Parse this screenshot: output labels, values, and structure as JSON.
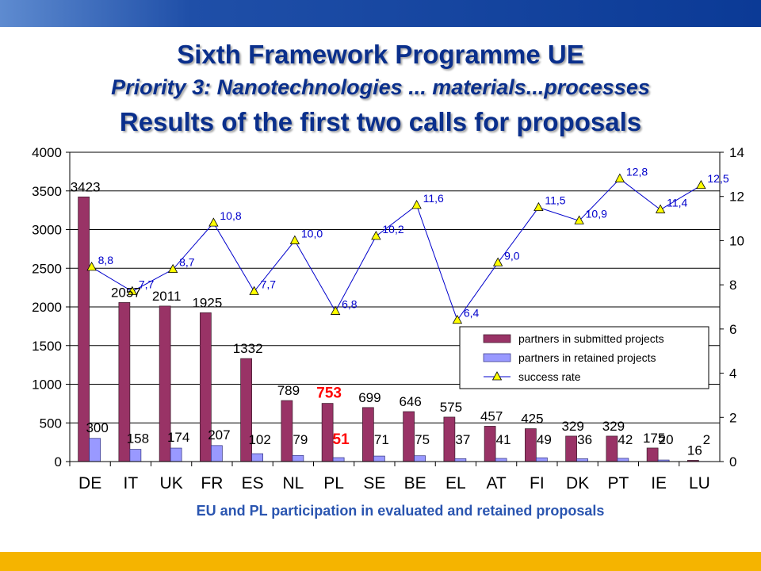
{
  "header": {
    "title": "Sixth Framework Programme UE",
    "subtitle": "Priority 3: Nanotechnologies ... materials...processes",
    "heading": "Results of the first two calls for proposals"
  },
  "caption": "EU and PL participation in evaluated and retained proposals",
  "colors": {
    "submitted": "#993366",
    "retained": "#9999ff",
    "line": "#0000cc",
    "marker": "#ffff00",
    "highlight": "#ff0000",
    "header_text": "#0a2f8c",
    "caption_text": "#2a55b0",
    "top_bar": "#0b3a96",
    "bottom_bar": "#f5b400"
  },
  "chart_data": {
    "type": "bar",
    "categories": [
      "DE",
      "IT",
      "UK",
      "FR",
      "ES",
      "NL",
      "PL",
      "SE",
      "BE",
      "EL",
      "AT",
      "FI",
      "DK",
      "PT",
      "IE",
      "LU"
    ],
    "series": [
      {
        "name": "partners in submitted projects",
        "axis": "left",
        "type": "bar",
        "values": [
          3423,
          2057,
          2011,
          1925,
          1332,
          789,
          753,
          699,
          646,
          575,
          457,
          425,
          329,
          329,
          175,
          16
        ]
      },
      {
        "name": "partners in retained projects",
        "axis": "left",
        "type": "bar",
        "values": [
          300,
          158,
          174,
          207,
          102,
          79,
          51,
          71,
          75,
          37,
          41,
          49,
          36,
          42,
          20,
          2
        ]
      },
      {
        "name": "success rate",
        "axis": "right",
        "type": "line",
        "marker": "triangle",
        "values": [
          8.8,
          7.7,
          8.7,
          10.8,
          7.7,
          10.0,
          6.8,
          10.2,
          11.6,
          6.4,
          9.0,
          11.5,
          10.9,
          12.8,
          11.4,
          12.5
        ]
      }
    ],
    "submitted_labels": [
      "3423",
      "2057",
      "2011",
      "1925",
      "1332",
      "789",
      "753",
      "699",
      "646",
      "575",
      "457",
      "425",
      "329",
      "329",
      "175",
      "16"
    ],
    "retained_labels": [
      "300",
      "158",
      "174",
      "207",
      "102",
      "79",
      "51",
      "71",
      "75",
      "37",
      "41",
      "49",
      "36",
      "42",
      "20",
      "2"
    ],
    "rate_labels": [
      "8,8",
      "7,7",
      "8,7",
      "10,8",
      "7,7",
      "10,0",
      "6,8",
      "10,2",
      "11,6",
      "6,4",
      "9,0",
      "11,5",
      "10,9",
      "12,8",
      "11,4",
      "12,5"
    ],
    "y_left": {
      "min": 0,
      "max": 4000,
      "ticks": [
        0,
        500,
        1000,
        1500,
        2000,
        2500,
        3000,
        3500,
        4000
      ]
    },
    "y_right": {
      "min": 0,
      "max": 14,
      "ticks": [
        0,
        2,
        4,
        6,
        8,
        10,
        12,
        14
      ]
    },
    "highlight_category": "PL",
    "grid": true,
    "legend_position": "right-middle"
  }
}
